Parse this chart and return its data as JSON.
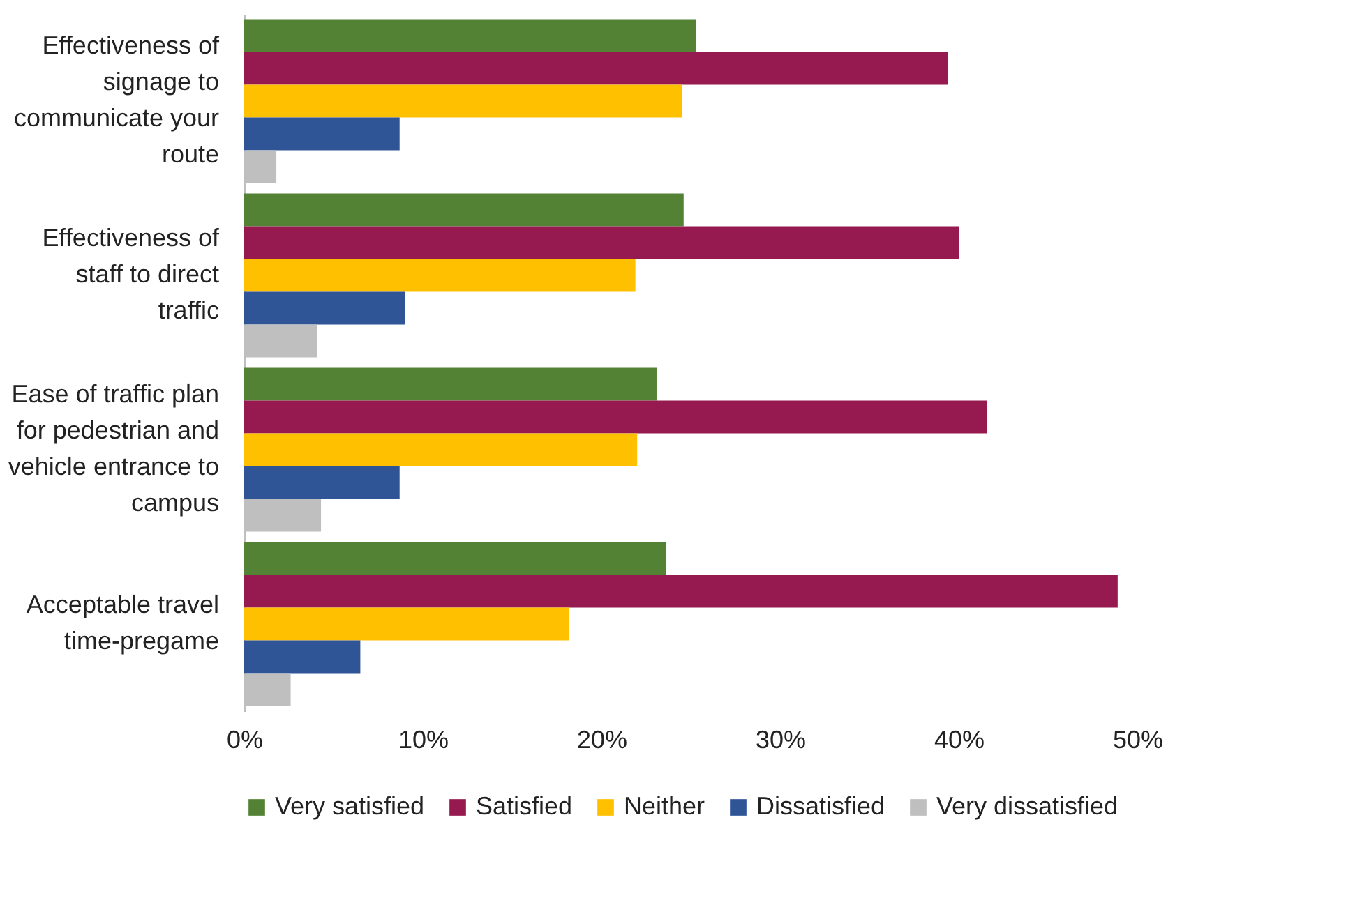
{
  "chart_data": {
    "type": "bar",
    "orientation": "horizontal",
    "categories": [
      "Effectiveness of signage to communicate your route",
      "Effectiveness of staff to direct traffic",
      "Ease of traffic plan for pedestrian and vehicle entrance to campus",
      "Acceptable travel time-pregame"
    ],
    "series": [
      {
        "name": "Very satisfied",
        "color": "#548235",
        "values": [
          25.3,
          24.6,
          23.1,
          23.6
        ]
      },
      {
        "name": "Satisfied",
        "color": "#961a50",
        "values": [
          39.4,
          40.0,
          41.6,
          48.9
        ]
      },
      {
        "name": "Neither",
        "color": "#ffc000",
        "values": [
          24.5,
          21.9,
          22.0,
          18.2
        ]
      },
      {
        "name": "Dissatisfied",
        "color": "#2f5597",
        "values": [
          8.7,
          9.0,
          8.7,
          6.5
        ]
      },
      {
        "name": "Very dissatisfied",
        "color": "#bfbfbf",
        "values": [
          1.8,
          4.1,
          4.3,
          2.6
        ]
      }
    ],
    "xlim": [
      0,
      50
    ],
    "xticks": [
      {
        "value": 0,
        "label": "0%"
      },
      {
        "value": 10,
        "label": "10%"
      },
      {
        "value": 20,
        "label": "20%"
      },
      {
        "value": 30,
        "label": "30%"
      },
      {
        "value": 40,
        "label": "40%"
      },
      {
        "value": 50,
        "label": "50%"
      }
    ],
    "grid": false,
    "legend": "bottom"
  }
}
